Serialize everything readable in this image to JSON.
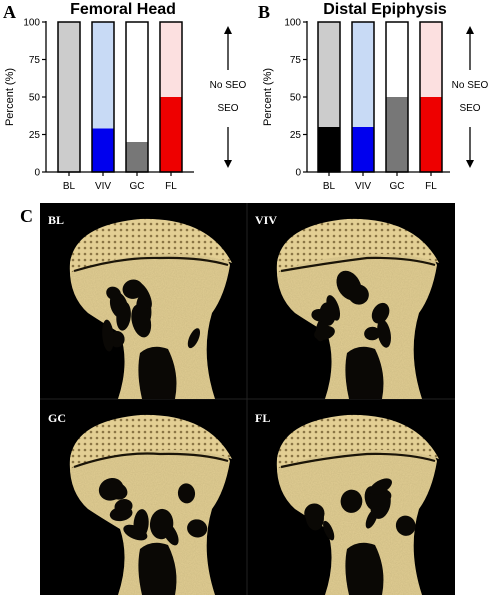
{
  "panels": [
    {
      "letter": "A"
    },
    {
      "letter": "B"
    },
    {
      "letter": "C"
    }
  ],
  "annotations": {
    "top": "No SEO",
    "bottom": "SEO"
  },
  "colors": {
    "BL": {
      "seo": "#cccccc",
      "noseo": "#cccccc"
    },
    "VIV": {
      "seo": "#0000ee",
      "noseo": "#c8daf5"
    },
    "GC": {
      "seo": "#777777",
      "noseo": "#ffffff"
    },
    "FL": {
      "seo": "#ee0000",
      "noseo": "#fce0e0"
    },
    "BL_distal": {
      "seo": "#000000",
      "noseo": "#cccccc"
    },
    "image_background": "#000000",
    "bone": "#e3cf94"
  },
  "chart_data": [
    {
      "type": "bar",
      "stacked": true,
      "title": "Femoral Head",
      "ylabel": "Percent (%)",
      "xlabel": "",
      "ylim": [
        0,
        100
      ],
      "yticks": [
        0,
        25,
        50,
        75,
        100
      ],
      "categories": [
        "BL",
        "VIV",
        "GC",
        "FL"
      ],
      "series": [
        {
          "name": "SEO",
          "values": [
            100,
            29,
            20,
            50
          ]
        },
        {
          "name": "No SEO",
          "values": [
            0,
            71,
            80,
            50
          ]
        }
      ]
    },
    {
      "type": "bar",
      "stacked": true,
      "title": "Distal Epiphysis",
      "ylabel": "Percent (%)",
      "xlabel": "",
      "ylim": [
        0,
        100
      ],
      "yticks": [
        0,
        25,
        50,
        75,
        100
      ],
      "categories": [
        "BL",
        "VIV",
        "GC",
        "FL"
      ],
      "series": [
        {
          "name": "SEO",
          "values": [
            30,
            30,
            50,
            50
          ]
        },
        {
          "name": "No SEO",
          "values": [
            70,
            70,
            50,
            50
          ]
        }
      ]
    }
  ],
  "images": [
    {
      "label": "BL"
    },
    {
      "label": "VIV"
    },
    {
      "label": "GC"
    },
    {
      "label": "FL"
    }
  ]
}
